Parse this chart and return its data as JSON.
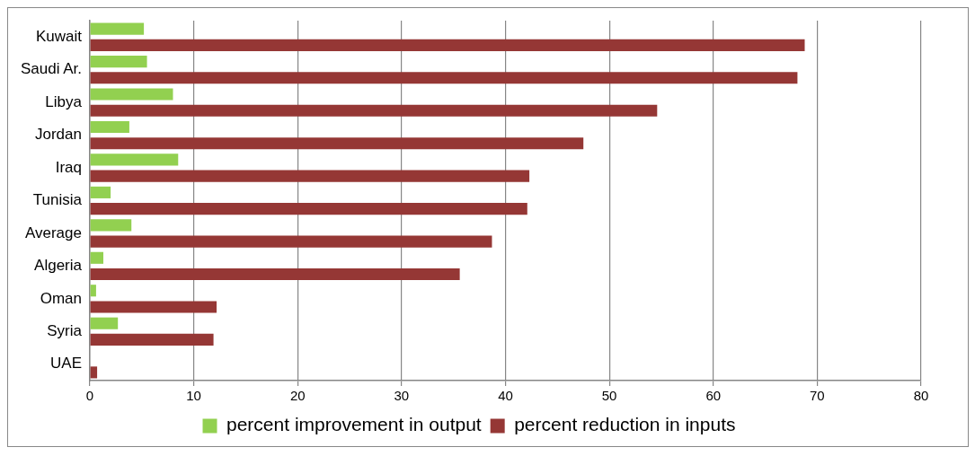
{
  "chart_data": {
    "type": "bar",
    "orientation": "horizontal",
    "categories": [
      "Kuwait",
      "Saudi Ar.",
      "Libya",
      "Jordan",
      "Iraq",
      "Tunisia",
      "Average",
      "Algeria",
      "Oman",
      "Syria",
      "UAE"
    ],
    "series": [
      {
        "name": "percent improvement in output",
        "color": "#92d050",
        "values": [
          5.2,
          5.5,
          8.0,
          3.8,
          8.5,
          2.0,
          4.0,
          1.3,
          0.6,
          2.7,
          0
        ]
      },
      {
        "name": "percent reduction in inputs",
        "color": "#953735",
        "values": [
          68.8,
          68.1,
          54.6,
          47.5,
          42.3,
          42.1,
          38.7,
          35.6,
          12.2,
          11.9,
          0.7
        ]
      }
    ],
    "xlim": [
      0,
      80
    ],
    "xticks": [
      0,
      10,
      20,
      30,
      40,
      50,
      60,
      70,
      80
    ],
    "grid": "x",
    "legend": "bottom"
  }
}
